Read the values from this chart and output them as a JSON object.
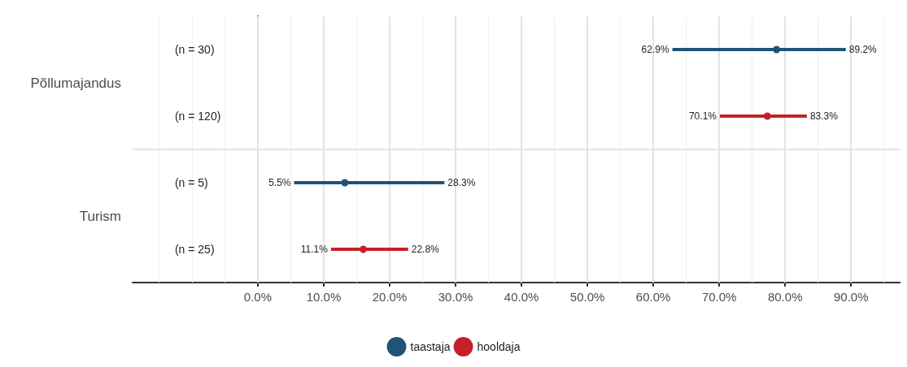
{
  "chart_data": {
    "type": "scatter",
    "orientation": "horizontal",
    "categories": [
      "Põllumajandus",
      "Turism"
    ],
    "series": [
      {
        "name": "taastaja",
        "color": "#1f5477",
        "values": [
          78.7,
          13.2
        ],
        "errors": [
          [
            62.9,
            89.2
          ],
          [
            5.5,
            28.3
          ]
        ]
      },
      {
        "name": "hooldaja",
        "color": "#c4202a",
        "values": [
          77.3,
          16.0
        ],
        "errors": [
          [
            70.1,
            83.3
          ],
          [
            11.1,
            22.8
          ]
        ]
      }
    ],
    "xlim": [
      -19,
      97.5
    ],
    "xticks": [
      {
        "value": 0,
        "label": "0.0%"
      },
      {
        "value": 10,
        "label": "10.0%"
      },
      {
        "value": 20,
        "label": "20.0%"
      },
      {
        "value": 30,
        "label": "30.0%"
      },
      {
        "value": 40,
        "label": "40.0%"
      },
      {
        "value": 50,
        "label": "50.0%"
      },
      {
        "value": 60,
        "label": "60.0%"
      },
      {
        "value": 70,
        "label": "70.0%"
      },
      {
        "value": 80,
        "label": "80.0%"
      },
      {
        "value": 90,
        "label": "90.0%"
      }
    ],
    "grid": true,
    "legend": "bottom",
    "marker": "circle",
    "annotations": [
      "(n = 30)",
      "(n = 120)",
      "(n = 5)",
      "(n = 25)",
      "62.9%",
      "89.2%",
      "70.1%",
      "83.3%",
      "5.5%",
      "28.3%",
      "11.1%",
      "22.8%"
    ]
  }
}
